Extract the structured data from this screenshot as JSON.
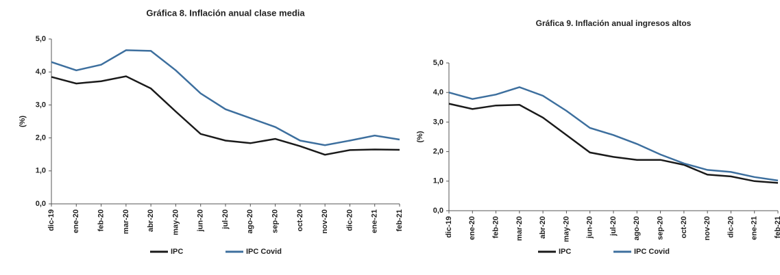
{
  "chart_data": [
    {
      "type": "line",
      "title": "Gráfica 8. Inflación anual clase media",
      "y_label": "(%)",
      "categories": [
        "dic-19",
        "ene-20",
        "feb-20",
        "mar-20",
        "abr-20",
        "may-20",
        "jun-20",
        "jul-20",
        "ago-20",
        "sep-20",
        "oct-20",
        "nov-20",
        "dic-20",
        "ene-21",
        "feb-21"
      ],
      "series": [
        {
          "name": "IPC",
          "color": "#1a1a1a",
          "values": [
            3.85,
            3.65,
            3.72,
            3.87,
            3.5,
            2.8,
            2.12,
            1.92,
            1.84,
            1.97,
            1.75,
            1.49,
            1.63,
            1.65,
            1.64
          ]
        },
        {
          "name": "IPC Covid",
          "color": "#3d6f9e",
          "values": [
            4.3,
            4.05,
            4.22,
            4.66,
            4.64,
            4.05,
            3.35,
            2.87,
            2.6,
            2.33,
            1.92,
            1.78,
            1.92,
            2.07,
            1.95
          ]
        }
      ],
      "ylim": [
        0,
        5
      ],
      "yticks": [
        {
          "value": 0,
          "label": "0,0"
        },
        {
          "value": 1,
          "label": "1,0"
        },
        {
          "value": 2,
          "label": "2,0"
        },
        {
          "value": 3,
          "label": "3,0"
        },
        {
          "value": 4,
          "label": "4,0"
        },
        {
          "value": 5,
          "label": "5,0"
        }
      ],
      "legend": "bottom"
    },
    {
      "type": "line",
      "title": "Gráfica 9. Inflación anual ingresos altos",
      "y_label": "(%)",
      "categories": [
        "dic-19",
        "ene-20",
        "feb-20",
        "mar-20",
        "abr-20",
        "may-20",
        "jun-20",
        "jul-20",
        "ago-20",
        "sep-20",
        "oct-20",
        "nov-20",
        "dic-20",
        "ene-21",
        "feb-21"
      ],
      "series": [
        {
          "name": "IPC",
          "color": "#1a1a1a",
          "values": [
            3.62,
            3.44,
            3.56,
            3.58,
            3.15,
            2.56,
            1.97,
            1.82,
            1.72,
            1.72,
            1.55,
            1.22,
            1.16,
            1.0,
            0.94
          ]
        },
        {
          "name": "IPC Covid",
          "color": "#3d6f9e",
          "values": [
            4.0,
            3.78,
            3.93,
            4.18,
            3.89,
            3.38,
            2.8,
            2.56,
            2.26,
            1.9,
            1.6,
            1.38,
            1.31,
            1.14,
            1.02
          ]
        }
      ],
      "ylim": [
        0,
        5
      ],
      "yticks": [
        {
          "value": 0,
          "label": "0,0"
        },
        {
          "value": 1,
          "label": "1,0"
        },
        {
          "value": 2,
          "label": "2,0"
        },
        {
          "value": 3,
          "label": "3,0"
        },
        {
          "value": 4,
          "label": "4,0"
        },
        {
          "value": 5,
          "label": "5,0"
        }
      ],
      "legend": "bottom"
    }
  ]
}
